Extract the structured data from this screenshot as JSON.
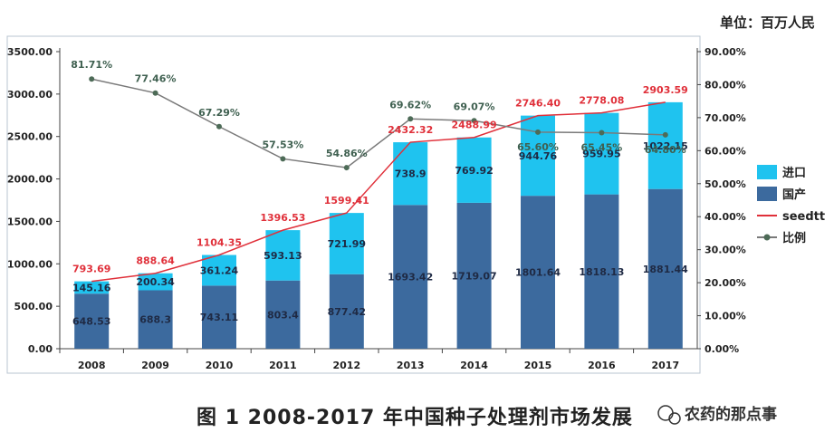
{
  "unit_label": "单位：百万人民",
  "caption": "图 1 2008-2017 年中国种子处理剂市场发展",
  "watermark": "农药的那点事",
  "colors": {
    "domestic": "#3c6a9e",
    "import": "#1fc3ef",
    "total_line": "#e0303a",
    "ratio_line": "#7a7a7a",
    "ratio_marker": "#4d6b57",
    "axis": "#444444",
    "frame": "#b8c4d0"
  },
  "chart_data": {
    "type": "bar",
    "stacked": true,
    "categories": [
      "2008",
      "2009",
      "2010",
      "2011",
      "2012",
      "2013",
      "2014",
      "2015",
      "2016",
      "2017"
    ],
    "series": [
      {
        "name": "国产",
        "kind": "bar",
        "values": [
          648.53,
          688.3,
          743.11,
          803.4,
          877.42,
          1693.42,
          1719.07,
          1801.64,
          1818.13,
          1881.44
        ],
        "labels": [
          "648.53",
          "688.3",
          "743.11",
          "803.4",
          "877.42",
          "1693.42",
          "1719.07",
          "1801.64",
          "1818.13",
          "1881.44"
        ]
      },
      {
        "name": "进口",
        "kind": "bar",
        "values": [
          145.16,
          200.34,
          361.24,
          593.13,
          721.99,
          738.9,
          769.92,
          944.76,
          959.95,
          1022.15
        ],
        "labels": [
          "145.16",
          "200.34",
          "361.24",
          "593.13",
          "721.99",
          "738.9",
          "769.92",
          "944.76",
          "959.95",
          "1022.15"
        ]
      },
      {
        "name": "seedtt",
        "kind": "line",
        "values": [
          793.69,
          888.64,
          1104.35,
          1396.53,
          1599.41,
          2432.32,
          2488.99,
          2746.4,
          2778.08,
          2903.59
        ],
        "labels": [
          "793.69",
          "888.64",
          "1104.35",
          "1396.53",
          "1599.41",
          "2432.32",
          "2488.99",
          "2746.40",
          "2778.08",
          "2903.59"
        ]
      },
      {
        "name": "比例",
        "kind": "line",
        "axis": "right",
        "values": [
          81.71,
          77.46,
          67.29,
          57.53,
          54.86,
          69.62,
          69.07,
          65.6,
          65.45,
          64.8
        ],
        "labels": [
          "81.71%",
          "77.46%",
          "67.29%",
          "57.53%",
          "54.86%",
          "69.62%",
          "69.07%",
          "65.60%",
          "65.45%",
          "64.80%"
        ]
      }
    ],
    "ylim": [
      0,
      3500
    ],
    "y2lim": [
      0,
      90
    ],
    "yticks": [
      "0.00",
      "500.00",
      "1000.00",
      "1500.00",
      "2000.00",
      "2500.00",
      "3000.00",
      "3500.00"
    ],
    "y2ticks": [
      "0.00%",
      "10.00%",
      "20.00%",
      "30.00%",
      "40.00%",
      "50.00%",
      "60.00%",
      "70.00%",
      "80.00%",
      "90.00%"
    ],
    "legend": [
      "进口",
      "国产",
      "seedtt",
      "比例"
    ],
    "legend_position": "right",
    "grid": false
  }
}
